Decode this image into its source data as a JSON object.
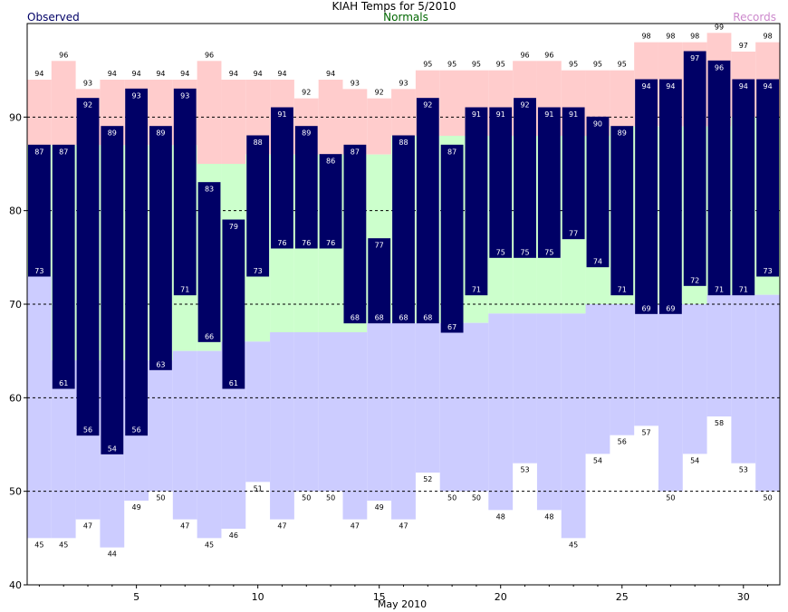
{
  "chart_data": {
    "type": "bar",
    "title": "KIAH Temps for 5/2010",
    "xlabel": "May 2010",
    "ylabel": "",
    "legend": {
      "observed": "Observed",
      "normals": "Normals",
      "records": "Records"
    },
    "colors": {
      "observed": "#000066",
      "observed_label": "#ffffff",
      "normals": "#ccffcc",
      "normals_label": "#006600",
      "record_high_band": "#ffcccc",
      "record_low_band": "#ccccff",
      "records_label": "#cc88cc",
      "observed_legend": "#000066",
      "grid": "#000000"
    },
    "xlim": [
      0.5,
      31.5
    ],
    "ylim": [
      40,
      100
    ],
    "x_ticks": [
      5,
      10,
      15,
      20,
      25,
      30
    ],
    "y_ticks": [
      40,
      50,
      60,
      70,
      80,
      90
    ],
    "grid_dashed_y": [
      50,
      60,
      70,
      80,
      90
    ],
    "days": [
      1,
      2,
      3,
      4,
      5,
      6,
      7,
      8,
      9,
      10,
      11,
      12,
      13,
      14,
      15,
      16,
      17,
      18,
      19,
      20,
      21,
      22,
      23,
      24,
      25,
      26,
      27,
      28,
      29,
      30,
      31
    ],
    "series": [
      {
        "name": "Record High",
        "values": [
          94,
          96,
          93,
          94,
          94,
          94,
          94,
          96,
          94,
          94,
          94,
          92,
          94,
          93,
          92,
          93,
          95,
          95,
          95,
          95,
          96,
          96,
          95,
          95,
          95,
          98,
          98,
          98,
          99,
          97,
          98
        ]
      },
      {
        "name": "Normal High",
        "values": [
          87,
          87,
          87,
          87,
          87,
          87,
          87,
          85,
          85,
          86,
          86,
          86,
          86,
          86,
          86,
          88,
          88,
          88,
          88,
          88,
          88,
          88,
          88,
          88,
          89,
          89,
          89,
          89,
          89,
          90,
          90
        ]
      },
      {
        "name": "Normal Low",
        "values": [
          73,
          64,
          64,
          64,
          64,
          64,
          65,
          65,
          66,
          66,
          67,
          67,
          67,
          67,
          68,
          68,
          68,
          68,
          68,
          69,
          69,
          69,
          69,
          70,
          70,
          70,
          70,
          70,
          71,
          71,
          71
        ]
      },
      {
        "name": "Record Low",
        "values": [
          45,
          45,
          47,
          44,
          49,
          50,
          47,
          45,
          46,
          51,
          47,
          50,
          50,
          47,
          49,
          47,
          52,
          50,
          50,
          48,
          53,
          48,
          45,
          54,
          56,
          57,
          50,
          54,
          58,
          53,
          50
        ]
      },
      {
        "name": "Observed High",
        "values": [
          87,
          87,
          92,
          89,
          93,
          89,
          93,
          83,
          79,
          88,
          91,
          89,
          86,
          87,
          77,
          88,
          92,
          87,
          91,
          91,
          92,
          91,
          91,
          90,
          89,
          94,
          94,
          97,
          96,
          94,
          94
        ]
      },
      {
        "name": "Observed Low",
        "values": [
          73,
          61,
          56,
          54,
          56,
          63,
          71,
          66,
          61,
          73,
          76,
          76,
          76,
          68,
          68,
          68,
          68,
          67,
          71,
          75,
          75,
          75,
          77,
          74,
          71,
          69,
          69,
          72,
          71,
          71,
          73
        ]
      }
    ]
  }
}
